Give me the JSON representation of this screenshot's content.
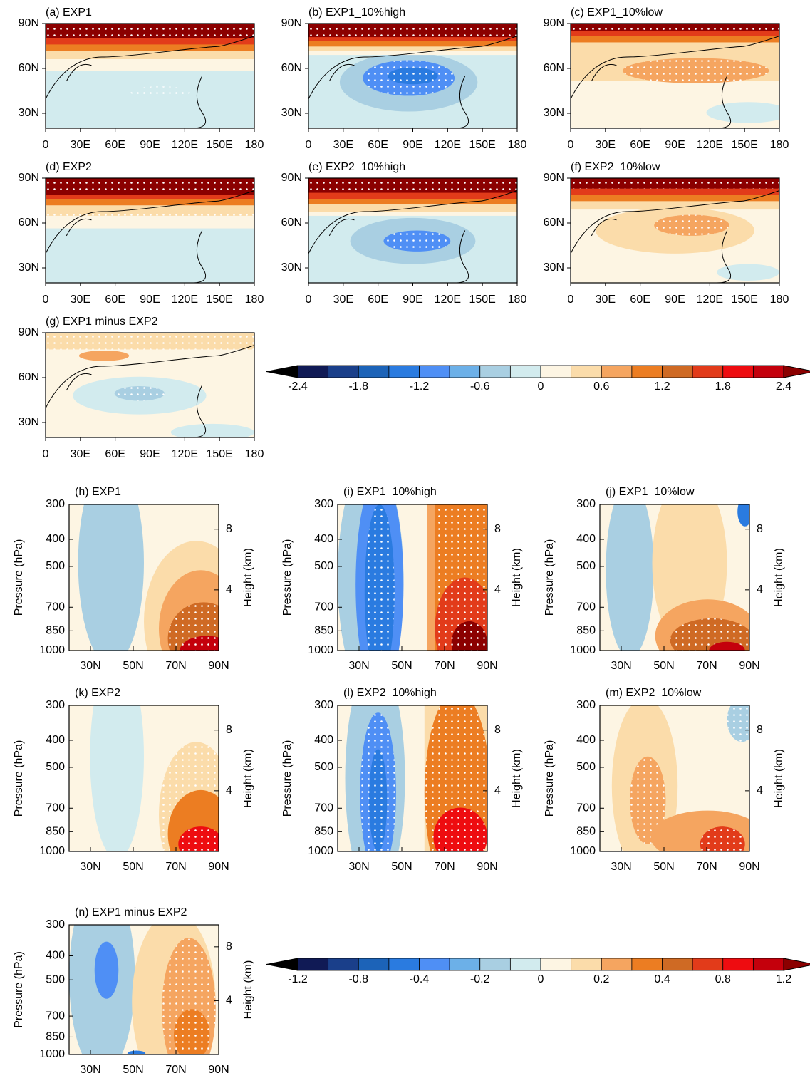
{
  "maps": {
    "panels": [
      {
        "title": "(a) EXP1"
      },
      {
        "title": "(b) EXP1_10%high"
      },
      {
        "title": "(c) EXP1_10%low"
      },
      {
        "title": "(d) EXP2"
      },
      {
        "title": "(e) EXP2_10%high"
      },
      {
        "title": "(f) EXP2_10%low"
      },
      {
        "title": "(g) EXP1 minus EXP2"
      }
    ],
    "lat_ticks": [
      {
        "value": 90,
        "label": "90N"
      },
      {
        "value": 60,
        "label": "60N"
      },
      {
        "value": 30,
        "label": "30N"
      }
    ],
    "lon_ticks": [
      0,
      {
        "value": 30,
        "label": "30E"
      },
      {
        "value": 60,
        "label": "60E"
      },
      {
        "value": 90,
        "label": "90E"
      },
      {
        "value": 120,
        "label": "120E"
      },
      {
        "value": 150,
        "label": "150E"
      },
      180
    ]
  },
  "sections": {
    "panels": [
      {
        "title": "(h) EXP1"
      },
      {
        "title": "(i) EXP1_10%high"
      },
      {
        "title": "(j) EXP1_10%low"
      },
      {
        "title": "(k) EXP2"
      },
      {
        "title": "(l) EXP2_10%high"
      },
      {
        "title": "(m) EXP2_10%low"
      },
      {
        "title": "(n) EXP1 minus EXP2"
      }
    ],
    "lat_ticks": [
      {
        "value": 30,
        "label": "30N"
      },
      {
        "value": 50,
        "label": "50N"
      },
      {
        "value": 70,
        "label": "70N"
      },
      {
        "value": 90,
        "label": "90N"
      }
    ],
    "pressure_ticks": [
      300,
      400,
      500,
      700,
      850,
      1000
    ],
    "height_ticks": [
      8,
      4
    ],
    "ylabel": "Pressure (hPa)",
    "y2label": "Height (km)"
  },
  "colorbars": [
    {
      "labels": [
        -2.4,
        -1.8,
        -1.2,
        -0.6,
        0,
        0.6,
        1.2,
        1.8,
        2.4
      ]
    },
    {
      "labels": [
        -1.2,
        -0.8,
        -0.4,
        -0.2,
        0,
        0.2,
        0.4,
        0.8,
        1.2
      ]
    }
  ],
  "colors": [
    "#000000",
    "#101a55",
    "#1a3f8a",
    "#1c63b8",
    "#2a7be0",
    "#4f8ff5",
    "#6cb0e8",
    "#a9cfe2",
    "#d2ebee",
    "#fdf5e3",
    "#fbdcaa",
    "#f5a560",
    "#ec7d22",
    "#cf6a24",
    "#e23b1a",
    "#ee0c10",
    "#c4000c",
    "#8b0000"
  ]
}
